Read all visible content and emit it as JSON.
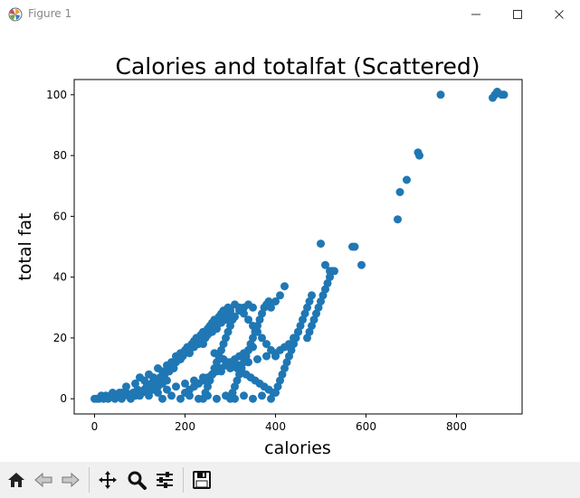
{
  "window": {
    "title": "Figure 1",
    "icons": [
      "matplotlib-logo-icon",
      "minimize-icon",
      "maximize-icon",
      "close-icon"
    ]
  },
  "toolbar": {
    "buttons": [
      "home-icon",
      "back-icon",
      "forward-icon",
      "pan-icon",
      "zoom-icon",
      "configure-subplots-icon",
      "save-icon"
    ]
  },
  "colors": {
    "marker": "#1f77b4",
    "toolbar_bg": "#f0f0f0"
  },
  "chart_data": {
    "type": "scatter",
    "title": "Calories and totalfat (Scattered)",
    "xlabel": "calories",
    "ylabel": "total fat",
    "xlim": [
      -45,
      945
    ],
    "ylim": [
      -5,
      105
    ],
    "xticks": [
      0,
      200,
      400,
      600,
      800
    ],
    "yticks": [
      0,
      20,
      40,
      60,
      80,
      100
    ],
    "grid": false,
    "points": [
      [
        0,
        0
      ],
      [
        5,
        0
      ],
      [
        10,
        0
      ],
      [
        15,
        1
      ],
      [
        20,
        0
      ],
      [
        25,
        1
      ],
      [
        30,
        0
      ],
      [
        35,
        1
      ],
      [
        40,
        2
      ],
      [
        45,
        0
      ],
      [
        50,
        1
      ],
      [
        55,
        2
      ],
      [
        60,
        0
      ],
      [
        65,
        1
      ],
      [
        70,
        2
      ],
      [
        75,
        1
      ],
      [
        80,
        0
      ],
      [
        85,
        2
      ],
      [
        90,
        1
      ],
      [
        95,
        3
      ],
      [
        100,
        1
      ],
      [
        105,
        2
      ],
      [
        110,
        3
      ],
      [
        115,
        4
      ],
      [
        120,
        2
      ],
      [
        125,
        5
      ],
      [
        130,
        3
      ],
      [
        135,
        6
      ],
      [
        140,
        4
      ],
      [
        145,
        7
      ],
      [
        150,
        5
      ],
      [
        155,
        8
      ],
      [
        160,
        6
      ],
      [
        165,
        9
      ],
      [
        170,
        11
      ],
      [
        175,
        10
      ],
      [
        180,
        12
      ],
      [
        185,
        13
      ],
      [
        190,
        15
      ],
      [
        195,
        14
      ],
      [
        200,
        16
      ],
      [
        205,
        17
      ],
      [
        210,
        15
      ],
      [
        215,
        18
      ],
      [
        220,
        19
      ],
      [
        225,
        20
      ],
      [
        230,
        18
      ],
      [
        235,
        21
      ],
      [
        240,
        22
      ],
      [
        245,
        20
      ],
      [
        250,
        23
      ],
      [
        255,
        24
      ],
      [
        260,
        25
      ],
      [
        265,
        26
      ],
      [
        270,
        24
      ],
      [
        275,
        27
      ],
      [
        280,
        28
      ],
      [
        285,
        29
      ],
      [
        290,
        27
      ],
      [
        295,
        30
      ],
      [
        300,
        29
      ],
      [
        310,
        31
      ],
      [
        320,
        30
      ],
      [
        330,
        28
      ],
      [
        340,
        26
      ],
      [
        350,
        24
      ],
      [
        360,
        22
      ],
      [
        370,
        20
      ],
      [
        380,
        18
      ],
      [
        390,
        16
      ],
      [
        400,
        14
      ],
      [
        60,
        2
      ],
      [
        70,
        4
      ],
      [
        80,
        1
      ],
      [
        90,
        5
      ],
      [
        100,
        7
      ],
      [
        110,
        6
      ],
      [
        120,
        8
      ],
      [
        130,
        7
      ],
      [
        140,
        10
      ],
      [
        150,
        9
      ],
      [
        160,
        11
      ],
      [
        170,
        12
      ],
      [
        180,
        14
      ],
      [
        190,
        13
      ],
      [
        200,
        15
      ],
      [
        210,
        16
      ],
      [
        220,
        17
      ],
      [
        230,
        19
      ],
      [
        240,
        18
      ],
      [
        250,
        21
      ],
      [
        260,
        22
      ],
      [
        270,
        23
      ],
      [
        280,
        25
      ],
      [
        290,
        26
      ],
      [
        300,
        28
      ],
      [
        310,
        27
      ],
      [
        320,
        29
      ],
      [
        330,
        30
      ],
      [
        340,
        31
      ],
      [
        350,
        30
      ],
      [
        120,
        1
      ],
      [
        140,
        2
      ],
      [
        160,
        3
      ],
      [
        180,
        4
      ],
      [
        200,
        5
      ],
      [
        220,
        6
      ],
      [
        240,
        7
      ],
      [
        260,
        8
      ],
      [
        280,
        9
      ],
      [
        300,
        10
      ],
      [
        320,
        11
      ],
      [
        340,
        12
      ],
      [
        360,
        13
      ],
      [
        380,
        14
      ],
      [
        400,
        15
      ],
      [
        410,
        16
      ],
      [
        420,
        17
      ],
      [
        430,
        18
      ],
      [
        440,
        20
      ],
      [
        450,
        22
      ],
      [
        150,
        0
      ],
      [
        170,
        1
      ],
      [
        190,
        0
      ],
      [
        210,
        1
      ],
      [
        230,
        0
      ],
      [
        250,
        1
      ],
      [
        270,
        0
      ],
      [
        290,
        1
      ],
      [
        310,
        0
      ],
      [
        330,
        1
      ],
      [
        350,
        0
      ],
      [
        370,
        1
      ],
      [
        390,
        0
      ],
      [
        395,
        2
      ],
      [
        385,
        3
      ],
      [
        375,
        4
      ],
      [
        365,
        5
      ],
      [
        355,
        6
      ],
      [
        345,
        7
      ],
      [
        335,
        8
      ],
      [
        325,
        9
      ],
      [
        315,
        10
      ],
      [
        305,
        11
      ],
      [
        295,
        12
      ],
      [
        285,
        13
      ],
      [
        275,
        14
      ],
      [
        265,
        15
      ],
      [
        200,
        2
      ],
      [
        210,
        3
      ],
      [
        220,
        4
      ],
      [
        230,
        5
      ],
      [
        240,
        6
      ],
      [
        250,
        7
      ],
      [
        260,
        8
      ],
      [
        270,
        9
      ],
      [
        280,
        10
      ],
      [
        290,
        11
      ],
      [
        300,
        12
      ],
      [
        310,
        13
      ],
      [
        320,
        14
      ],
      [
        330,
        15
      ],
      [
        340,
        16
      ],
      [
        350,
        17
      ],
      [
        240,
        0
      ],
      [
        245,
        2
      ],
      [
        250,
        4
      ],
      [
        255,
        6
      ],
      [
        260,
        8
      ],
      [
        265,
        10
      ],
      [
        270,
        12
      ],
      [
        275,
        14
      ],
      [
        280,
        16
      ],
      [
        285,
        18
      ],
      [
        290,
        20
      ],
      [
        295,
        22
      ],
      [
        300,
        24
      ],
      [
        305,
        26
      ],
      [
        300,
        0
      ],
      [
        305,
        2
      ],
      [
        310,
        4
      ],
      [
        315,
        6
      ],
      [
        320,
        8
      ],
      [
        325,
        10
      ],
      [
        330,
        12
      ],
      [
        335,
        14
      ],
      [
        340,
        16
      ],
      [
        345,
        18
      ],
      [
        350,
        20
      ],
      [
        355,
        22
      ],
      [
        360,
        24
      ],
      [
        365,
        26
      ],
      [
        370,
        28
      ],
      [
        375,
        30
      ],
      [
        380,
        31
      ],
      [
        385,
        32
      ],
      [
        390,
        30
      ],
      [
        400,
        32
      ],
      [
        410,
        34
      ],
      [
        420,
        37
      ],
      [
        400,
        2
      ],
      [
        405,
        4
      ],
      [
        410,
        6
      ],
      [
        415,
        8
      ],
      [
        420,
        10
      ],
      [
        425,
        12
      ],
      [
        430,
        14
      ],
      [
        435,
        16
      ],
      [
        440,
        18
      ],
      [
        445,
        20
      ],
      [
        450,
        22
      ],
      [
        455,
        24
      ],
      [
        460,
        26
      ],
      [
        465,
        28
      ],
      [
        470,
        30
      ],
      [
        475,
        32
      ],
      [
        480,
        34
      ],
      [
        470,
        20
      ],
      [
        475,
        22
      ],
      [
        480,
        24
      ],
      [
        485,
        26
      ],
      [
        490,
        28
      ],
      [
        495,
        30
      ],
      [
        500,
        32
      ],
      [
        505,
        34
      ],
      [
        510,
        36
      ],
      [
        515,
        38
      ],
      [
        520,
        40
      ],
      [
        525,
        42
      ],
      [
        500,
        51
      ],
      [
        510,
        44
      ],
      [
        520,
        42
      ],
      [
        530,
        42
      ],
      [
        570,
        50
      ],
      [
        575,
        50
      ],
      [
        590,
        44
      ],
      [
        670,
        59
      ],
      [
        675,
        68
      ],
      [
        690,
        72
      ],
      [
        715,
        81
      ],
      [
        718,
        80
      ],
      [
        765,
        100
      ],
      [
        880,
        99
      ],
      [
        885,
        100
      ],
      [
        890,
        101
      ],
      [
        900,
        100
      ],
      [
        905,
        100
      ]
    ]
  }
}
